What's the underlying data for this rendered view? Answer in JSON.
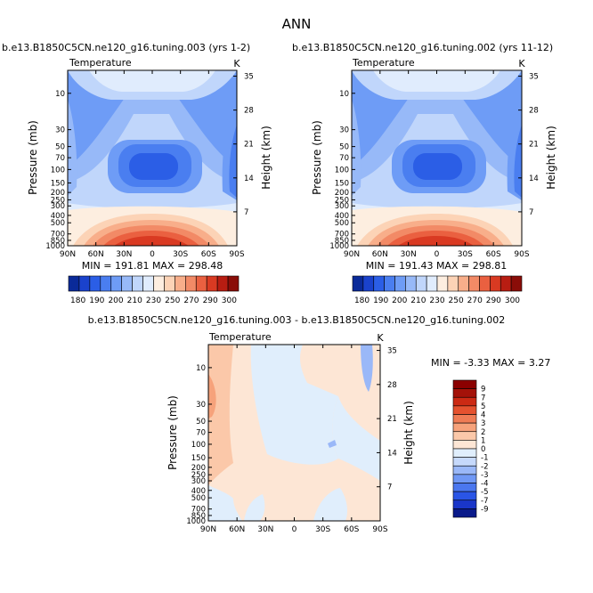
{
  "title": "ANN",
  "panel_titles": [
    "b.e13.B1850C5CN.ne120_g16.tuning.003 (yrs 1-2)",
    "b.e13.B1850C5CN.ne120_g16.tuning.002 (yrs 11-12)",
    "b.e13.B1850C5CN.ne120_g16.tuning.003 - b.e13.B1850C5CN.ne120_g16.tuning.002"
  ],
  "variable_label": "Temperature",
  "unit_label": "K",
  "ylabel_left": "Pressure (mb)",
  "ylabel_right": "Height (km)",
  "x_ticks": [
    "90N",
    "60N",
    "30N",
    "0",
    "30S",
    "60S",
    "90S"
  ],
  "p_ticks": [
    "10",
    "30",
    "50",
    "70",
    "100",
    "150",
    "200",
    "250",
    "300",
    "400",
    "500",
    "700",
    "850",
    "1000"
  ],
  "p_tick_values": [
    10,
    30,
    50,
    70,
    100,
    150,
    200,
    250,
    300,
    400,
    500,
    700,
    850,
    1000
  ],
  "h_ticks": [
    "35",
    "28",
    "21",
    "14",
    "7"
  ],
  "h_tick_values": [
    35,
    28,
    21,
    14,
    7
  ],
  "colors": {
    "temp_levels": [
      "#0a2a99",
      "#1a42cc",
      "#2b5ee6",
      "#4a7ef0",
      "#6e9cf6",
      "#97b9f8",
      "#c0d6fb",
      "#e0ecfd",
      "#fdeee0",
      "#fcd3b6",
      "#f8ae8a",
      "#f28a66",
      "#ea6040",
      "#d93a22",
      "#b81d12",
      "#8a0d08"
    ],
    "diff_levels": [
      "#0a1a8a",
      "#1a36c8",
      "#2a55e6",
      "#4b77ef",
      "#7098f5",
      "#9ab8f8",
      "#c6d9fb",
      "#e0eefc",
      "#fde6d5",
      "#fbc8a9",
      "#f6a27b",
      "#ef7c55",
      "#e5522f",
      "#cc2a14",
      "#a41209",
      "#8b0000"
    ]
  },
  "chart_data": [
    {
      "type": "heatmap",
      "title": "b.e13.B1850C5CN.ne120_g16.tuning.003 (yrs 1-2)",
      "variable": "Temperature",
      "unit": "K",
      "xlabel": "",
      "ylabel": "Pressure (mb)",
      "ylabel_right": "Height (km)",
      "x": [
        "90N",
        "60N",
        "30N",
        "0",
        "30S",
        "60S",
        "90S"
      ],
      "ylim": [
        1000,
        5
      ],
      "min": 191.81,
      "max": 298.48,
      "stats_text": "MIN = 191.81   MAX = 298.48",
      "colorbar_labels": [
        "180",
        "190",
        "200",
        "210",
        "230",
        "250",
        "270",
        "290",
        "300"
      ],
      "grid": false
    },
    {
      "type": "heatmap",
      "title": "b.e13.B1850C5CN.ne120_g16.tuning.002 (yrs 11-12)",
      "variable": "Temperature",
      "unit": "K",
      "xlabel": "",
      "ylabel": "Pressure (mb)",
      "ylabel_right": "Height (km)",
      "x": [
        "90N",
        "60N",
        "30N",
        "0",
        "30S",
        "60S",
        "90S"
      ],
      "ylim": [
        1000,
        5
      ],
      "min": 191.43,
      "max": 298.81,
      "stats_text": "MIN = 191.43   MAX = 298.81",
      "colorbar_labels": [
        "180",
        "190",
        "200",
        "210",
        "230",
        "250",
        "270",
        "290",
        "300"
      ],
      "grid": false
    },
    {
      "type": "heatmap",
      "title": "b.e13.B1850C5CN.ne120_g16.tuning.003 - b.e13.B1850C5CN.ne120_g16.tuning.002",
      "variable": "Temperature",
      "unit": "K",
      "xlabel": "",
      "ylabel": "Pressure (mb)",
      "ylabel_right": "Height (km)",
      "x": [
        "90N",
        "60N",
        "30N",
        "0",
        "30S",
        "60S",
        "90S"
      ],
      "ylim": [
        1000,
        5
      ],
      "min": -3.33,
      "max": 3.27,
      "stats_text": "MIN =   -3.33   MAX =    3.27",
      "colorbar_labels": [
        "9",
        "7",
        "5",
        "4",
        "3",
        "2",
        "1",
        "0",
        "-1",
        "-2",
        "-3",
        "-4",
        "-5",
        "-7",
        "-9"
      ],
      "grid": false
    }
  ]
}
